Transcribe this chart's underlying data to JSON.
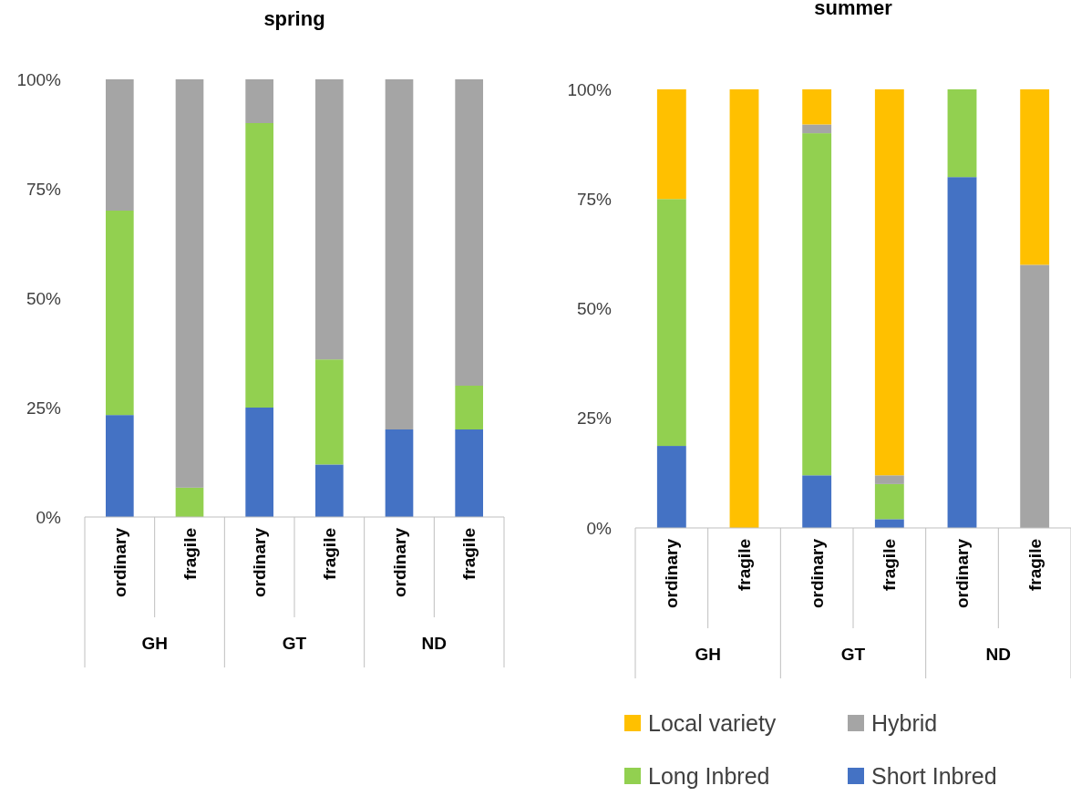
{
  "chart_data": [
    {
      "type": "bar",
      "title": "spring",
      "stacked": true,
      "categories": [
        "ordinary",
        "fragile",
        "ordinary",
        "fragile",
        "ordinary",
        "fragile"
      ],
      "series": [
        {
          "color": "#4472c4",
          "values": [
            23.3,
            0,
            25,
            12,
            20,
            20
          ]
        },
        {
          "color": "#92d050",
          "values": [
            46.7,
            6.7,
            65,
            24,
            0,
            10
          ]
        },
        {
          "color": "#a5a5a5",
          "values": [
            30,
            93.3,
            10,
            64,
            80,
            70
          ]
        },
        {
          "color": "#ffc000",
          "values": [
            0,
            0,
            0,
            0,
            0,
            0
          ]
        }
      ],
      "ylim": [
        0,
        100
      ],
      "yticks": [
        {
          "value": 0,
          "label": "0%"
        },
        {
          "value": 25,
          "label": "25%"
        },
        {
          "value": 50,
          "label": "50%"
        },
        {
          "value": 75,
          "label": "75%"
        },
        {
          "value": 100,
          "label": "100%"
        }
      ],
      "annotations": [
        "GH",
        "GT",
        "ND"
      ],
      "grid": false,
      "legend": false
    },
    {
      "type": "bar",
      "title": "summer",
      "stacked": true,
      "categories": [
        "ordinary",
        "fragile",
        "ordinary",
        "fragile",
        "ordinary",
        "fragile"
      ],
      "series": [
        {
          "name": "Short Inbred",
          "color": "#4472c4",
          "values": [
            18.7,
            0,
            12,
            2,
            80,
            0
          ]
        },
        {
          "name": "Long Inbred",
          "color": "#92d050",
          "values": [
            56.3,
            0,
            78,
            8,
            20,
            0
          ]
        },
        {
          "name": "Hybrid",
          "color": "#a5a5a5",
          "values": [
            0,
            0,
            2,
            2,
            0,
            60
          ]
        },
        {
          "name": "Local variety",
          "color": "#ffc000",
          "values": [
            25,
            100,
            8,
            88,
            0,
            40
          ]
        }
      ],
      "ylim": [
        0,
        100
      ],
      "yticks": [
        {
          "value": 0,
          "label": "0%"
        },
        {
          "value": 25,
          "label": "25%"
        },
        {
          "value": 50,
          "label": "50%"
        },
        {
          "value": 75,
          "label": "75%"
        },
        {
          "value": 100,
          "label": "100%"
        }
      ],
      "annotations": [
        "GH",
        "GT",
        "ND"
      ],
      "grid": false,
      "legend": "bottom"
    }
  ]
}
